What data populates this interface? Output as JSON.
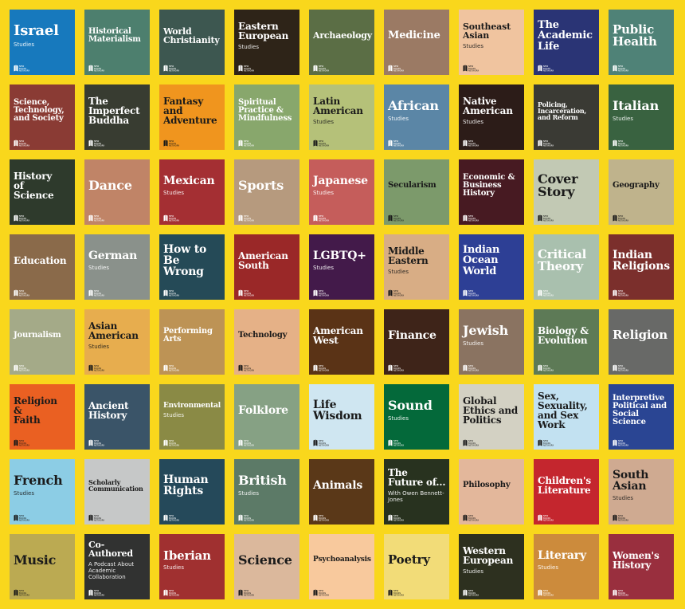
{
  "logo_text": "NEW BOOKS NETWORK",
  "tiles": [
    {
      "title": "Israel",
      "sub": "Studies",
      "bg": "#1779bd",
      "fg": "light",
      "size": 18
    },
    {
      "title": "Historical\nMaterialism",
      "sub": "",
      "bg": "#4d7f6e",
      "fg": "light",
      "size": 10
    },
    {
      "title": "World\nChristianity",
      "sub": "",
      "bg": "#3d5750",
      "fg": "light",
      "size": 11
    },
    {
      "title": "Eastern\nEuropean",
      "sub": "Studies",
      "bg": "#2e2418",
      "fg": "light",
      "size": 12
    },
    {
      "title": "Archaeology",
      "sub": "",
      "bg": "#5b6e45",
      "fg": "light",
      "size": 11
    },
    {
      "title": "Medicine",
      "sub": "",
      "bg": "#9b7a64",
      "fg": "light",
      "size": 13
    },
    {
      "title": "Southeast\nAsian",
      "sub": "Studies",
      "bg": "#f0c49f",
      "fg": "dark",
      "size": 11
    },
    {
      "title": "The\nAcademic\nLife",
      "sub": "",
      "bg": "#2a3475",
      "fg": "light",
      "size": 13
    },
    {
      "title": "Public\nHealth",
      "sub": "",
      "bg": "#4f8277",
      "fg": "light",
      "size": 15
    },
    {
      "title": "Science,\nTechnology,\nand Society",
      "sub": "",
      "bg": "#8a3b34",
      "fg": "light",
      "size": 10
    },
    {
      "title": "The\nImperfect\nBuddha",
      "sub": "",
      "bg": "#383c31",
      "fg": "light",
      "size": 12
    },
    {
      "title": "Fantasy\nand\nAdventure",
      "sub": "",
      "bg": "#f0951e",
      "fg": "dark",
      "size": 12
    },
    {
      "title": "Spiritual\nPractice &\nMindfulness",
      "sub": "",
      "bg": "#88a76c",
      "fg": "light",
      "size": 10
    },
    {
      "title": "Latin\nAmerican",
      "sub": "Studies",
      "bg": "#b5c179",
      "fg": "dark",
      "size": 12
    },
    {
      "title": "African",
      "sub": "Studies",
      "bg": "#5b86a6",
      "fg": "light",
      "size": 16
    },
    {
      "title": "Native\nAmerican",
      "sub": "Studies",
      "bg": "#2c1c18",
      "fg": "light",
      "size": 12
    },
    {
      "title": "Policing,\nIncarceration,\nand Reform",
      "sub": "",
      "bg": "#3a3a34",
      "fg": "light",
      "size": 8
    },
    {
      "title": "Italian",
      "sub": "Studies",
      "bg": "#396240",
      "fg": "light",
      "size": 16
    },
    {
      "title": "History\nof\nScience",
      "sub": "",
      "bg": "#2e3a2c",
      "fg": "light",
      "size": 12
    },
    {
      "title": "Dance",
      "sub": "",
      "bg": "#c08467",
      "fg": "light",
      "size": 16
    },
    {
      "title": "Mexican",
      "sub": "Studies",
      "bg": "#a42f33",
      "fg": "light",
      "size": 14
    },
    {
      "title": "Sports",
      "sub": "",
      "bg": "#b69a7e",
      "fg": "light",
      "size": 16
    },
    {
      "title": "Japanese",
      "sub": "Studies",
      "bg": "#c55d5b",
      "fg": "light",
      "size": 14
    },
    {
      "title": "Secularism",
      "sub": "",
      "bg": "#7c9a6b",
      "fg": "dark",
      "size": 10
    },
    {
      "title": "Economic &\nBusiness\nHistory",
      "sub": "",
      "bg": "#471a22",
      "fg": "light",
      "size": 10
    },
    {
      "title": "Cover\nStory",
      "sub": "",
      "bg": "#c2c9b4",
      "fg": "dark",
      "size": 16
    },
    {
      "title": "Geography",
      "sub": "",
      "bg": "#bfb38c",
      "fg": "dark",
      "size": 10
    },
    {
      "title": "Education",
      "sub": "",
      "bg": "#8a6a4a",
      "fg": "light",
      "size": 12
    },
    {
      "title": "German",
      "sub": "Studies",
      "bg": "#8a918b",
      "fg": "light",
      "size": 14
    },
    {
      "title": "How to\nBe\nWrong",
      "sub": "",
      "bg": "#254a57",
      "fg": "light",
      "size": 14
    },
    {
      "title": "American\nSouth",
      "sub": "",
      "bg": "#9a2828",
      "fg": "light",
      "size": 12
    },
    {
      "title": "LGBTQ+",
      "sub": "Studies",
      "bg": "#431a4a",
      "fg": "light",
      "size": 14
    },
    {
      "title": "Middle\nEastern",
      "sub": "Studies",
      "bg": "#d8ad85",
      "fg": "dark",
      "size": 12
    },
    {
      "title": "Indian\nOcean\nWorld",
      "sub": "",
      "bg": "#2d3f95",
      "fg": "light",
      "size": 13
    },
    {
      "title": "Critical\nTheory",
      "sub": "",
      "bg": "#a9c0ae",
      "fg": "light",
      "size": 15
    },
    {
      "title": "Indian\nReligions",
      "sub": "",
      "bg": "#7b2f2c",
      "fg": "light",
      "size": 14
    },
    {
      "title": "Journalism",
      "sub": "",
      "bg": "#a4aa88",
      "fg": "light",
      "size": 10
    },
    {
      "title": "Asian\nAmerican",
      "sub": "Studies",
      "bg": "#e7ad4e",
      "fg": "dark",
      "size": 12
    },
    {
      "title": "Performing\nArts",
      "sub": "",
      "bg": "#bd9355",
      "fg": "light",
      "size": 10
    },
    {
      "title": "Technology",
      "sub": "",
      "bg": "#e5b187",
      "fg": "dark",
      "size": 10
    },
    {
      "title": "American\nWest",
      "sub": "",
      "bg": "#5a3316",
      "fg": "light",
      "size": 12
    },
    {
      "title": "Finance",
      "sub": "",
      "bg": "#3e2419",
      "fg": "light",
      "size": 14
    },
    {
      "title": "Jewish",
      "sub": "Studies",
      "bg": "#8a7361",
      "fg": "light",
      "size": 16
    },
    {
      "title": "Biology &\nEvolution",
      "sub": "",
      "bg": "#5d7a56",
      "fg": "light",
      "size": 12
    },
    {
      "title": "Religion",
      "sub": "",
      "bg": "#686967",
      "fg": "light",
      "size": 15
    },
    {
      "title": "Religion\n&\nFaith",
      "sub": "",
      "bg": "#ea6022",
      "fg": "dark",
      "size": 12
    },
    {
      "title": "Ancient\nHistory",
      "sub": "",
      "bg": "#3a5468",
      "fg": "light",
      "size": 12
    },
    {
      "title": "Environmental",
      "sub": "Studies",
      "bg": "#8a8a45",
      "fg": "light",
      "size": 9
    },
    {
      "title": "Folklore",
      "sub": "",
      "bg": "#86a184",
      "fg": "light",
      "size": 14
    },
    {
      "title": "Life\nWisdom",
      "sub": "",
      "bg": "#cfe6f1",
      "fg": "dark",
      "size": 14
    },
    {
      "title": "Sound",
      "sub": "Studies",
      "bg": "#04693a",
      "fg": "light",
      "size": 16
    },
    {
      "title": "Global\nEthics and\nPolitics",
      "sub": "",
      "bg": "#d3d1c3",
      "fg": "dark",
      "size": 12
    },
    {
      "title": "Sex,\nSexuality,\nand Sex\nWork",
      "sub": "",
      "bg": "#c2e1f1",
      "fg": "dark",
      "size": 12
    },
    {
      "title": "Interpretive\nPolitical and\nSocial\nScience",
      "sub": "",
      "bg": "#2a4593",
      "fg": "light",
      "size": 10
    },
    {
      "title": "French",
      "sub": "Studies",
      "bg": "#8ccde5",
      "fg": "dark",
      "size": 16
    },
    {
      "title": "Scholarly\nCommunication",
      "sub": "",
      "bg": "#c6c8c8",
      "fg": "dark",
      "size": 8
    },
    {
      "title": "Human\nRights",
      "sub": "",
      "bg": "#25495a",
      "fg": "light",
      "size": 14
    },
    {
      "title": "British",
      "sub": "Studies",
      "bg": "#5c7a67",
      "fg": "light",
      "size": 16
    },
    {
      "title": "Animals",
      "sub": "",
      "bg": "#5a3818",
      "fg": "light",
      "size": 14
    },
    {
      "title": "The\nFuture of...",
      "sub": "With Owen Bennett-\nJones",
      "bg": "#28321f",
      "fg": "light",
      "size": 12
    },
    {
      "title": "Philosophy",
      "sub": "",
      "bg": "#e3b79b",
      "fg": "dark",
      "size": 10
    },
    {
      "title": "Children's\nLiterature",
      "sub": "",
      "bg": "#c4262e",
      "fg": "light",
      "size": 12
    },
    {
      "title": "South\nAsian",
      "sub": "Studies",
      "bg": "#cfaa91",
      "fg": "dark",
      "size": 14
    },
    {
      "title": "Music",
      "sub": "",
      "bg": "#bbaa52",
      "fg": "dark",
      "size": 16
    },
    {
      "title": "Co-Authored",
      "sub": "A Podcast About\nAcademic Collaboration",
      "bg": "#313231",
      "fg": "light",
      "size": 11
    },
    {
      "title": "Iberian",
      "sub": "Studies",
      "bg": "#a03030",
      "fg": "light",
      "size": 15
    },
    {
      "title": "Science",
      "sub": "",
      "bg": "#dbb89c",
      "fg": "dark",
      "size": 16
    },
    {
      "title": "Psychoanalysis",
      "sub": "",
      "bg": "#f8c99d",
      "fg": "dark",
      "size": 9
    },
    {
      "title": "Poetry",
      "sub": "",
      "bg": "#f2dc78",
      "fg": "dark",
      "size": 15
    },
    {
      "title": "Western\nEuropean",
      "sub": "Studies",
      "bg": "#2d301f",
      "fg": "light",
      "size": 12
    },
    {
      "title": "Literary",
      "sub": "Studies",
      "bg": "#cc8b3c",
      "fg": "light",
      "size": 14
    },
    {
      "title": "Women's\nHistory",
      "sub": "",
      "bg": "#992f3e",
      "fg": "light",
      "size": 12
    }
  ]
}
